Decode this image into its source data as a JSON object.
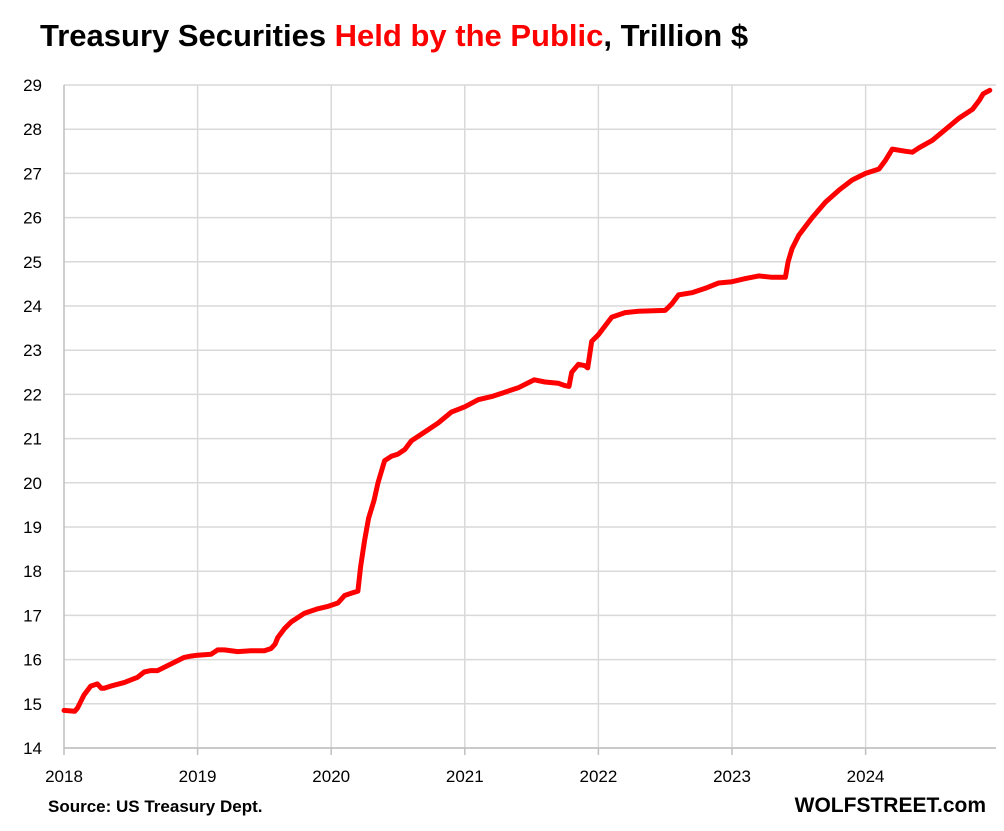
{
  "chart_data": {
    "type": "line",
    "title": {
      "part1": "Treasury Securities ",
      "part2": "Held by the Public",
      "part3": ", Trillion $"
    },
    "xlabel": "",
    "ylabel": "",
    "ylim": [
      14,
      29
    ],
    "xlim": [
      2018.0,
      2024.93
    ],
    "y_ticks": [
      "14",
      "15",
      "16",
      "17",
      "18",
      "19",
      "20",
      "21",
      "22",
      "23",
      "24",
      "25",
      "26",
      "27",
      "28",
      "29"
    ],
    "x_ticks": [
      "2018",
      "2019",
      "2020",
      "2021",
      "2022",
      "2023",
      "2024"
    ],
    "grid": true,
    "legend": "none",
    "source": "Source: US Treasury Dept.",
    "brand": "WOLFSTREET.com",
    "colors": {
      "line": "#ff0000",
      "title_highlight": "#ff0000",
      "grid": "#d9d9d9",
      "axis": "#bfbfbf"
    },
    "series": [
      {
        "name": "Treasury Securities Held by the Public",
        "x": [
          2018.0,
          2018.08,
          2018.1,
          2018.15,
          2018.2,
          2018.25,
          2018.28,
          2018.3,
          2018.35,
          2018.45,
          2018.55,
          2018.6,
          2018.65,
          2018.7,
          2018.8,
          2018.9,
          2018.95,
          2019.0,
          2019.1,
          2019.15,
          2019.2,
          2019.3,
          2019.4,
          2019.5,
          2019.55,
          2019.58,
          2019.6,
          2019.65,
          2019.7,
          2019.8,
          2019.9,
          2019.97,
          2020.05,
          2020.1,
          2020.15,
          2020.2,
          2020.22,
          2020.25,
          2020.28,
          2020.32,
          2020.35,
          2020.4,
          2020.45,
          2020.5,
          2020.55,
          2020.6,
          2020.7,
          2020.8,
          2020.9,
          2021.0,
          2021.1,
          2021.2,
          2021.3,
          2021.4,
          2021.5,
          2021.52,
          2021.6,
          2021.7,
          2021.75,
          2021.78,
          2021.8,
          2021.85,
          2021.9,
          2021.92,
          2021.95,
          2022.0,
          2022.05,
          2022.1,
          2022.2,
          2022.3,
          2022.5,
          2022.55,
          2022.6,
          2022.7,
          2022.8,
          2022.9,
          2023.0,
          2023.1,
          2023.2,
          2023.3,
          2023.4,
          2023.42,
          2023.45,
          2023.5,
          2023.55,
          2023.6,
          2023.7,
          2023.8,
          2023.9,
          2024.0,
          2024.1,
          2024.15,
          2024.2,
          2024.3,
          2024.35,
          2024.4,
          2024.5,
          2024.6,
          2024.7,
          2024.8,
          2024.85,
          2024.88,
          2024.93
        ],
        "values": [
          14.85,
          14.83,
          14.9,
          15.2,
          15.4,
          15.45,
          15.35,
          15.35,
          15.4,
          15.48,
          15.6,
          15.72,
          15.75,
          15.75,
          15.9,
          16.05,
          16.08,
          16.1,
          16.12,
          16.22,
          16.22,
          16.18,
          16.2,
          16.2,
          16.25,
          16.35,
          16.5,
          16.7,
          16.85,
          17.05,
          17.15,
          17.2,
          17.28,
          17.45,
          17.5,
          17.55,
          18.1,
          18.7,
          19.2,
          19.6,
          20.0,
          20.5,
          20.6,
          20.65,
          20.75,
          20.95,
          21.15,
          21.35,
          21.6,
          21.72,
          21.88,
          21.95,
          22.05,
          22.15,
          22.3,
          22.33,
          22.28,
          22.25,
          22.2,
          22.18,
          22.5,
          22.68,
          22.65,
          22.6,
          23.2,
          23.35,
          23.55,
          23.75,
          23.85,
          23.88,
          23.9,
          24.05,
          24.25,
          24.3,
          24.4,
          24.52,
          24.55,
          24.62,
          24.68,
          24.65,
          24.65,
          25.0,
          25.3,
          25.6,
          25.8,
          26.0,
          26.35,
          26.62,
          26.85,
          27.0,
          27.1,
          27.3,
          27.55,
          27.5,
          27.48,
          27.58,
          27.75,
          28.0,
          28.25,
          28.45,
          28.65,
          28.8,
          28.88
        ]
      }
    ]
  }
}
